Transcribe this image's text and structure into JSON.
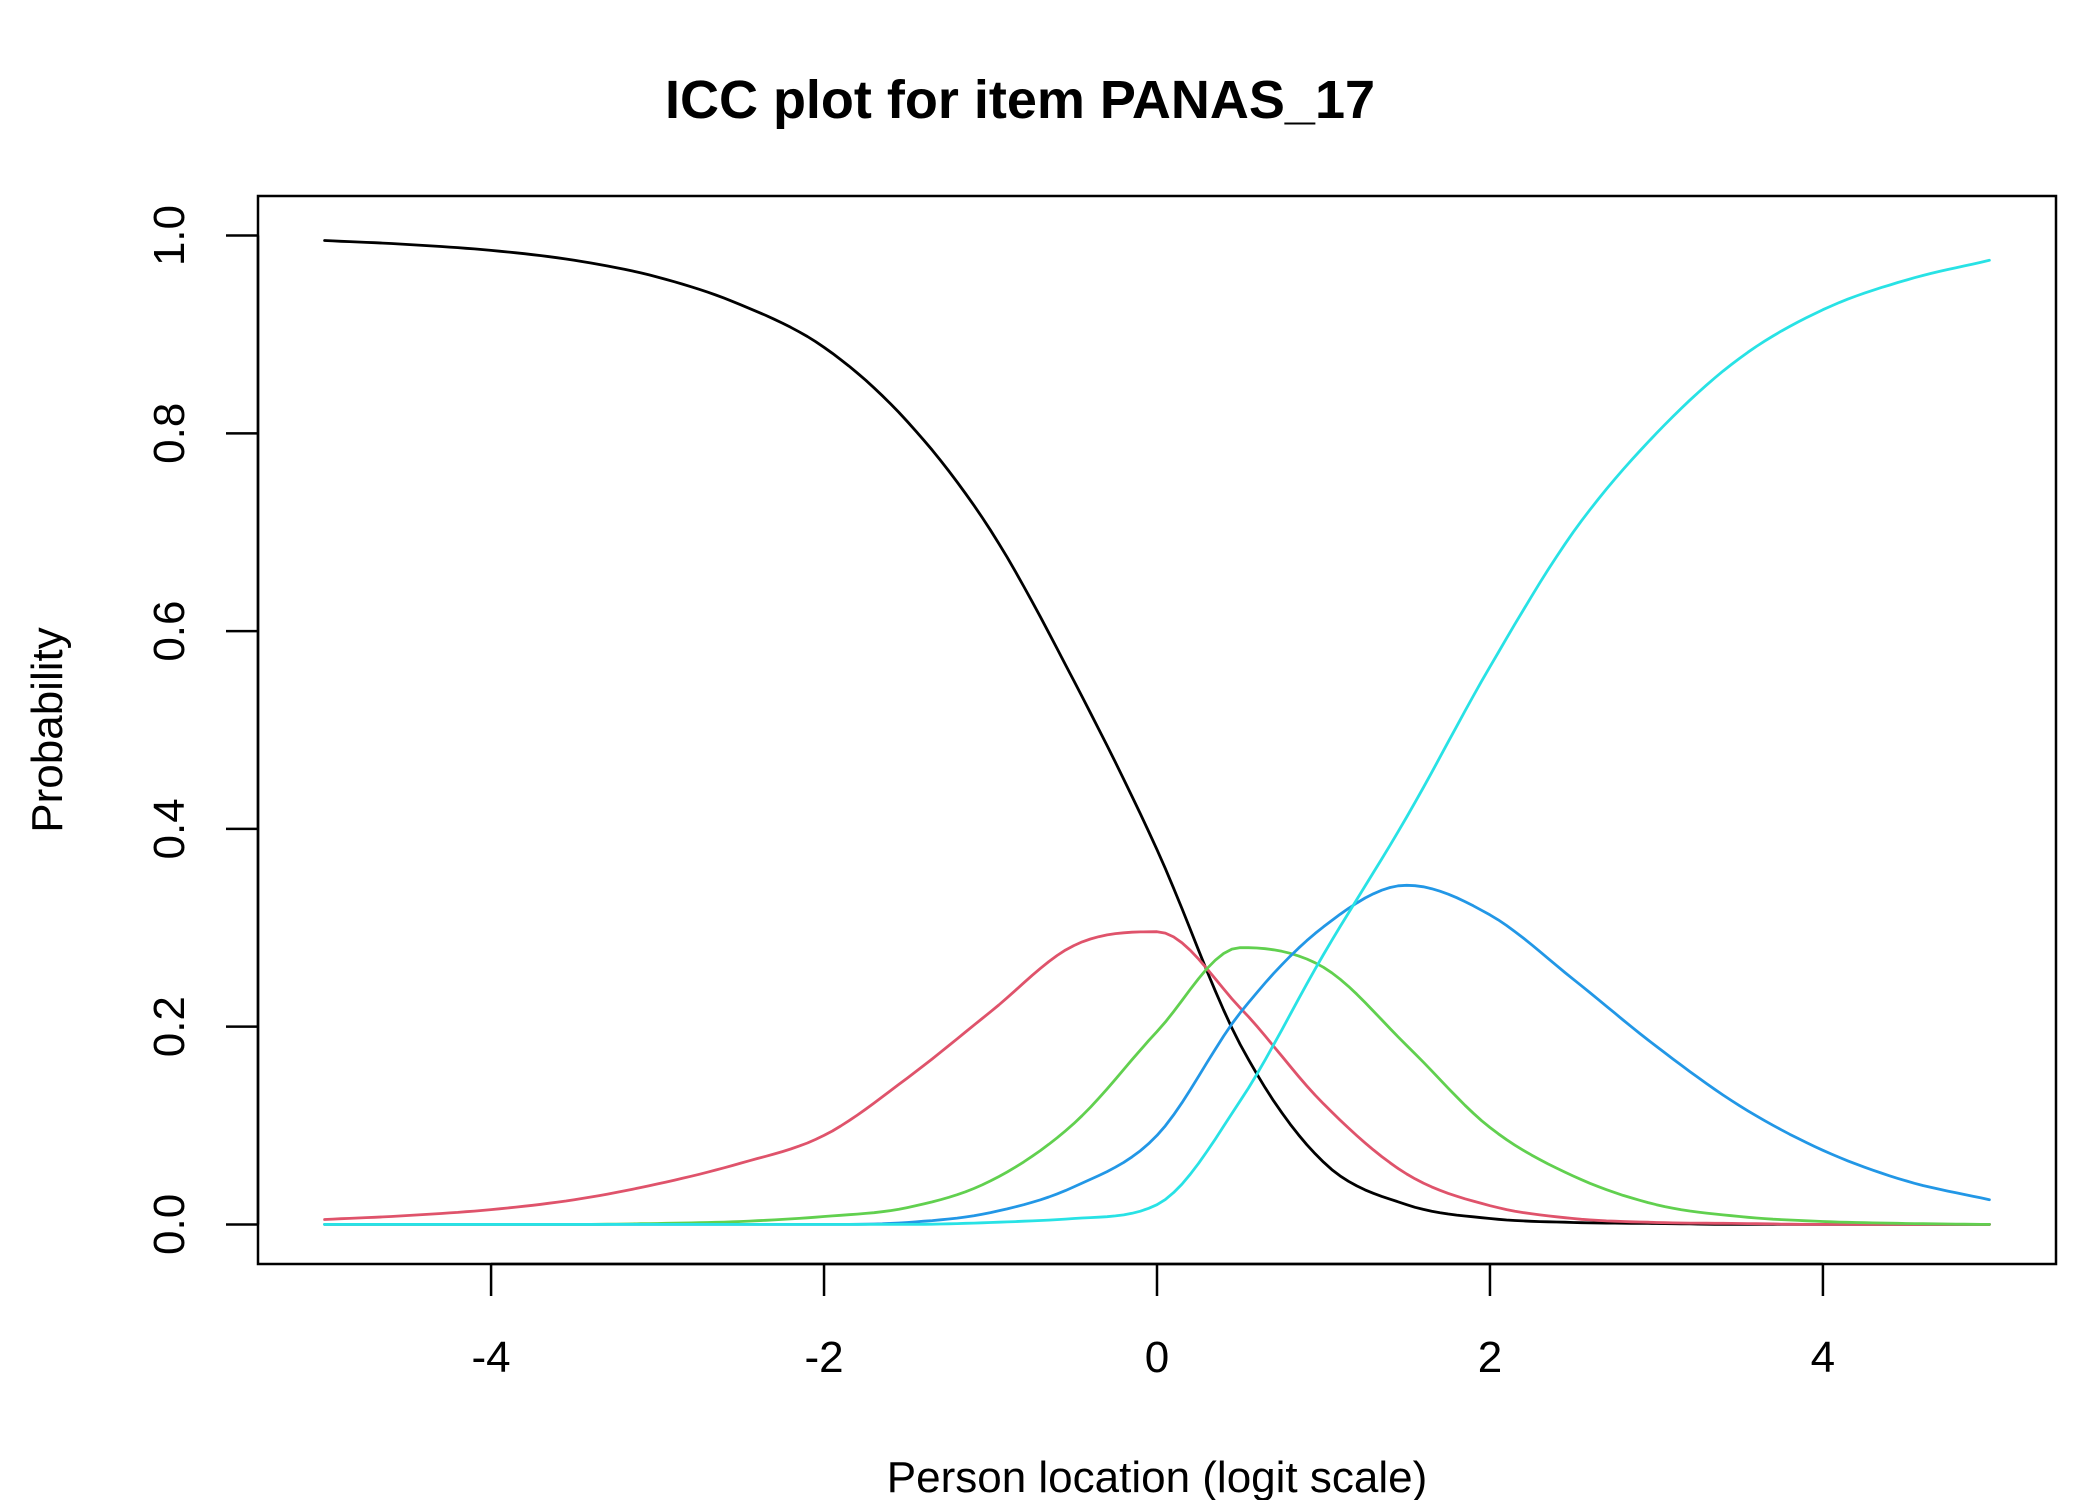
{
  "chart_data": {
    "type": "line",
    "title": "ICC plot for item PANAS_17",
    "xlabel": "Person location (logit scale)",
    "ylabel": "Probability",
    "xlim": [
      -5.4,
      5.4
    ],
    "ylim": [
      -0.04,
      1.04
    ],
    "x_ticks": [
      -4,
      -2,
      0,
      2,
      4
    ],
    "x_tick_labels": [
      "-4",
      "-2",
      "0",
      "2",
      "4"
    ],
    "y_ticks": [
      0.0,
      0.2,
      0.4,
      0.6,
      0.8,
      1.0
    ],
    "y_tick_labels": [
      "0.0",
      "0.2",
      "0.4",
      "0.6",
      "0.8",
      "1.0"
    ],
    "grid": false,
    "legend": "none",
    "x": [
      -5,
      -4.5,
      -4,
      -3.5,
      -3,
      -2.5,
      -2,
      -1.5,
      -1,
      -0.5,
      0,
      0.5,
      1,
      1.5,
      2,
      2.5,
      3,
      3.5,
      4,
      4.5,
      5
    ],
    "series": [
      {
        "color": "#000000",
        "values": [
          0.995,
          0.991,
          0.985,
          0.975,
          0.958,
          0.93,
          0.887,
          0.812,
          0.702,
          0.55,
          0.379,
          0.182,
          0.063,
          0.02,
          0.006,
          0.002,
          0.001,
          0.0,
          0.0,
          0.0,
          0.0
        ]
      },
      {
        "color": "#DF536B",
        "values": [
          0.005,
          0.009,
          0.015,
          0.025,
          0.041,
          0.062,
          0.09,
          0.148,
          0.215,
          0.282,
          0.296,
          0.219,
          0.122,
          0.051,
          0.019,
          0.006,
          0.002,
          0.001,
          0.0,
          0.0,
          0.0
        ]
      },
      {
        "color": "#61D04F",
        "values": [
          0.0,
          0.0,
          0.0,
          0.0,
          0.001,
          0.003,
          0.008,
          0.017,
          0.044,
          0.102,
          0.195,
          0.28,
          0.26,
          0.181,
          0.098,
          0.049,
          0.02,
          0.008,
          0.003,
          0.001,
          0.0
        ]
      },
      {
        "color": "#2297E6",
        "values": [
          0.0,
          0.0,
          0.0,
          0.0,
          0.0,
          0.0,
          0.0,
          0.002,
          0.012,
          0.038,
          0.09,
          0.214,
          0.301,
          0.343,
          0.313,
          0.248,
          0.18,
          0.12,
          0.075,
          0.044,
          0.025
        ]
      },
      {
        "color": "#28E2E5",
        "values": [
          0.0,
          0.0,
          0.0,
          0.0,
          0.0,
          0.0,
          0.0,
          0.0,
          0.002,
          0.006,
          0.02,
          0.125,
          0.273,
          0.412,
          0.564,
          0.7,
          0.8,
          0.876,
          0.925,
          0.955,
          0.975
        ]
      }
    ]
  }
}
